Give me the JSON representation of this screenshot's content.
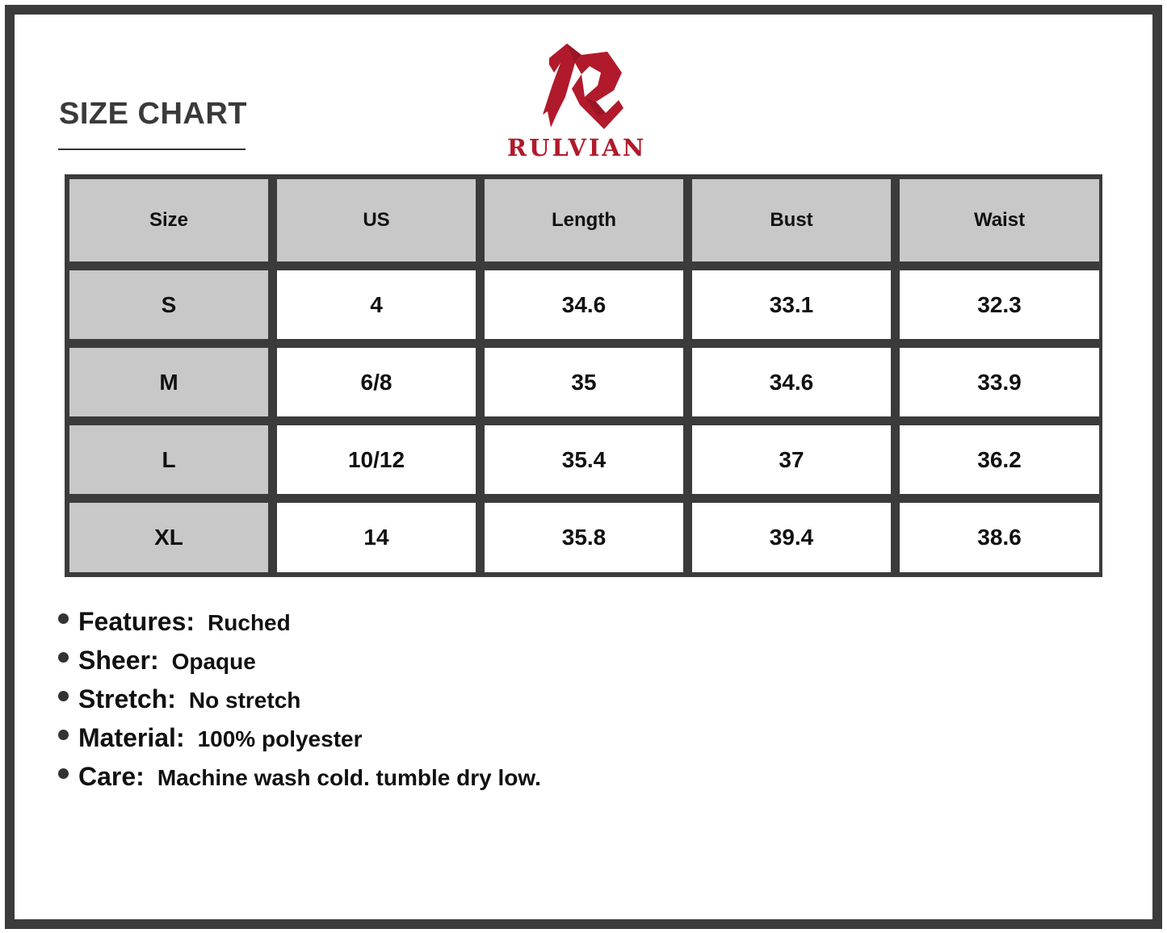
{
  "title": "SIZE CHART",
  "brand": {
    "name": "RULVIAN",
    "color": "#b11a2b"
  },
  "table": {
    "headers": [
      "Size",
      "US",
      "Length",
      "Bust",
      "Waist"
    ],
    "rows": [
      [
        "S",
        "4",
        "34.6",
        "33.1",
        "32.3"
      ],
      [
        "M",
        "6/8",
        "35",
        "34.6",
        "33.9"
      ],
      [
        "L",
        "10/12",
        "35.4",
        "37",
        "36.2"
      ],
      [
        "XL",
        "14",
        "35.8",
        "39.4",
        "38.6"
      ]
    ]
  },
  "features": [
    {
      "label": "Features:",
      "value": "Ruched"
    },
    {
      "label": "Sheer:",
      "value": "Opaque"
    },
    {
      "label": "Stretch:",
      "value": "No stretch"
    },
    {
      "label": "Material:",
      "value": "100% polyester"
    },
    {
      "label": "Care:",
      "value": "Machine wash cold. tumble dry low."
    }
  ]
}
